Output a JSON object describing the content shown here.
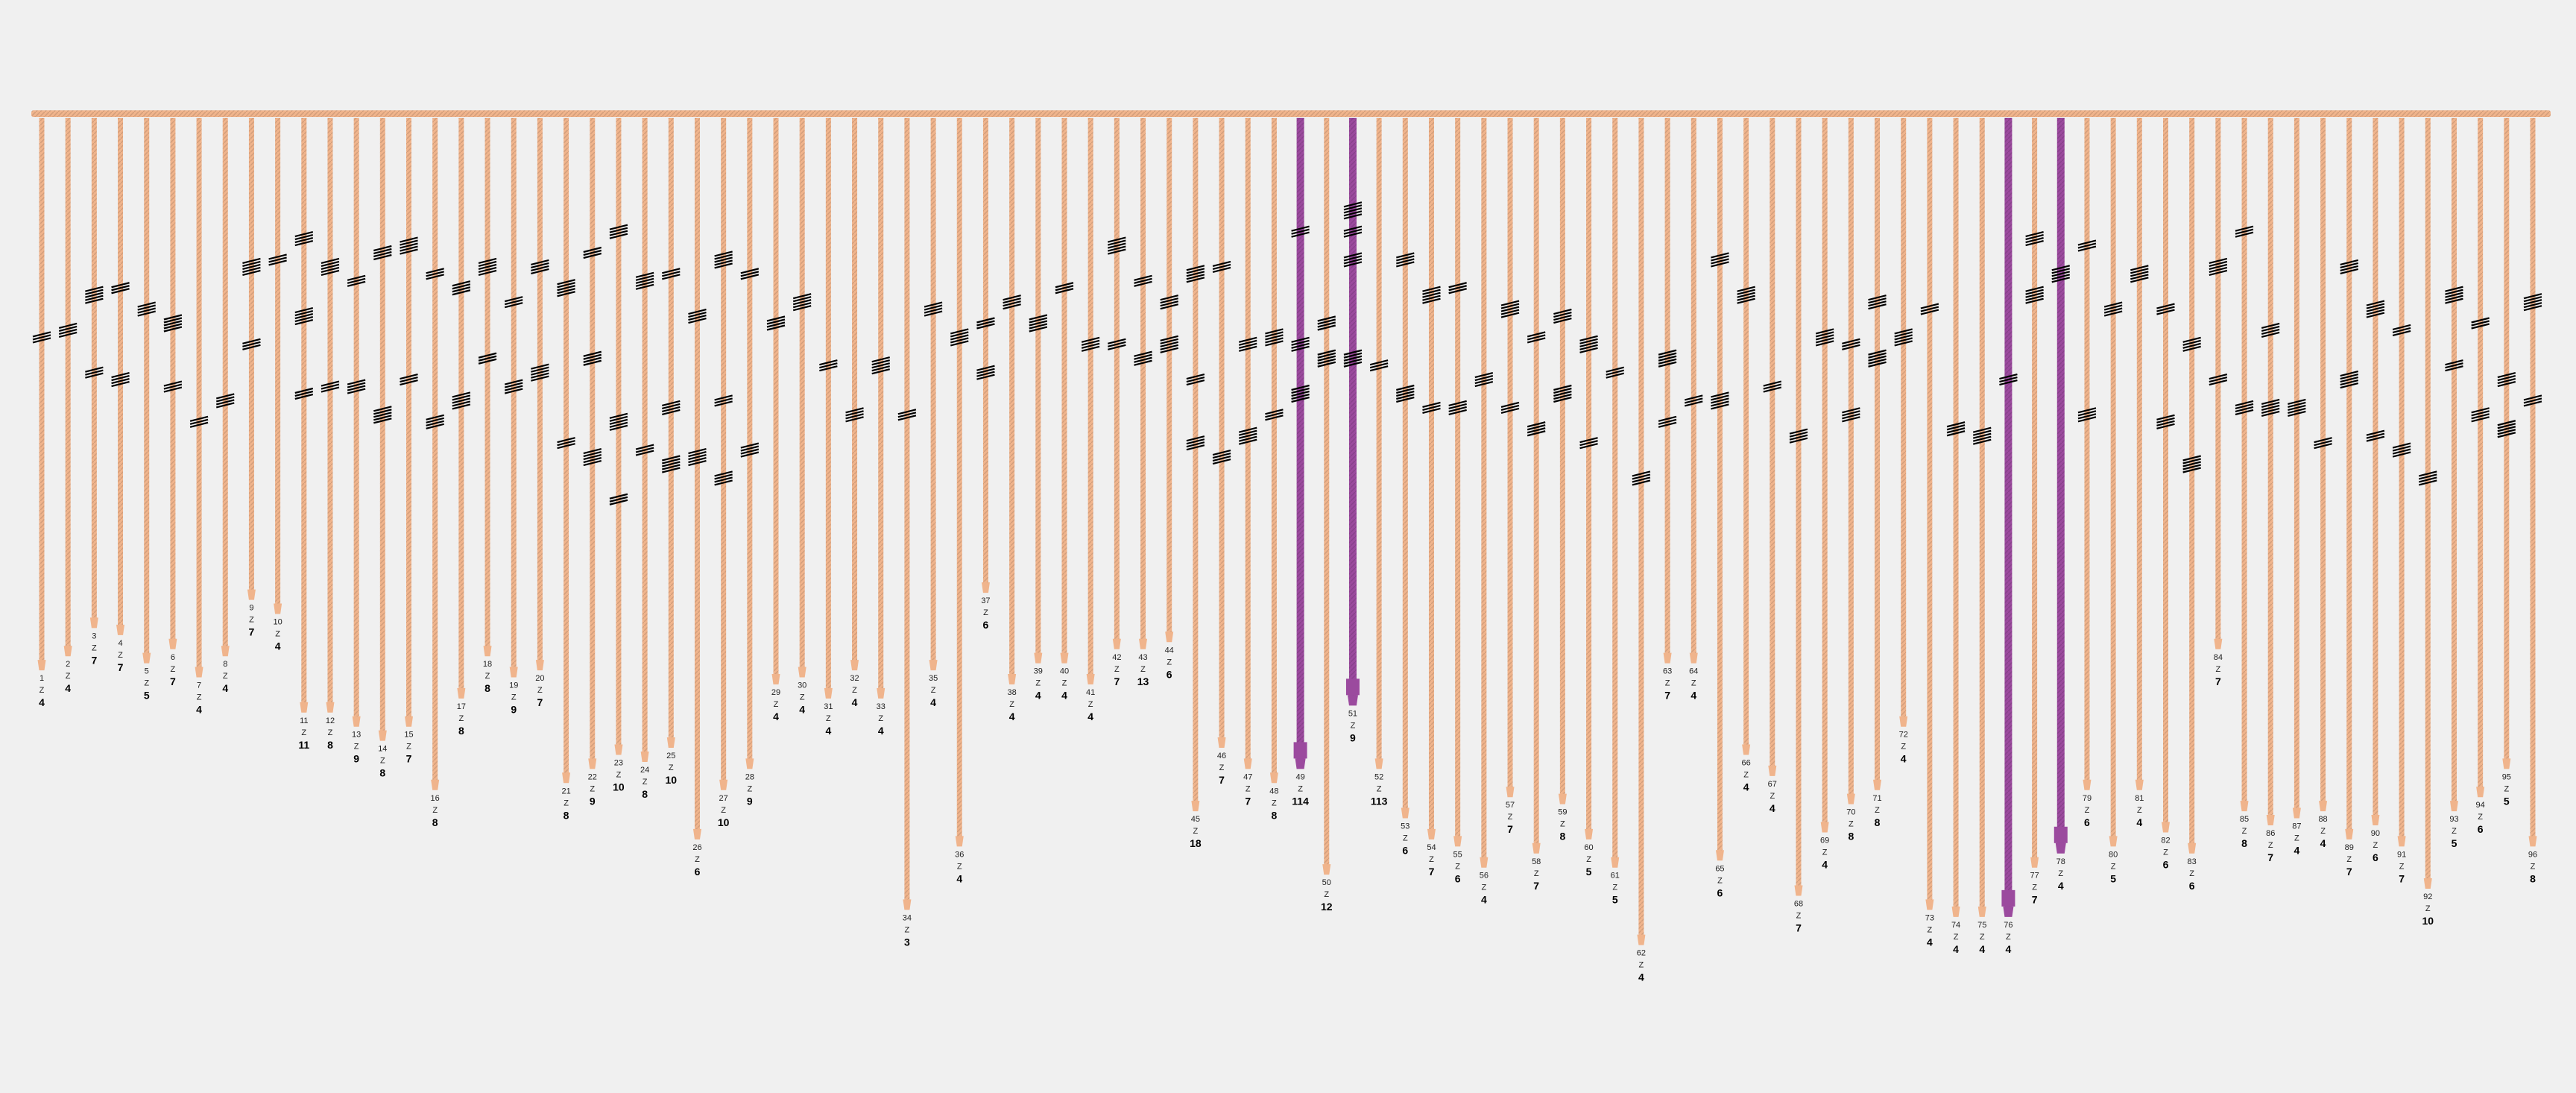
{
  "colors": {
    "background": "#f0f0f0",
    "main_cord": "#f0b48c",
    "cord": "#f0b48c",
    "cord_highlight": "#9b4a9e",
    "knot": "#000000",
    "text": "#222222"
  },
  "cords": [
    {
      "n": "1",
      "c": "Z",
      "v": "4",
      "h": false,
      "len": 0.78,
      "k": [
        0.32
      ]
    },
    {
      "n": "2",
      "c": "Z",
      "v": "4",
      "h": false,
      "len": 0.76,
      "k": [
        0.31
      ]
    },
    {
      "n": "3",
      "c": "Z",
      "v": "7",
      "h": false,
      "len": 0.72,
      "k": [
        0.26,
        0.37
      ]
    },
    {
      "n": "4",
      "c": "Z",
      "v": "7",
      "h": false,
      "len": 0.73,
      "k": [
        0.25,
        0.38
      ]
    },
    {
      "n": "5",
      "c": "Z",
      "v": "5",
      "h": false,
      "len": 0.77,
      "k": [
        0.28
      ]
    },
    {
      "n": "6",
      "c": "Z",
      "v": "7",
      "h": false,
      "len": 0.75,
      "k": [
        0.3,
        0.39
      ]
    },
    {
      "n": "7",
      "c": "Z",
      "v": "4",
      "h": false,
      "len": 0.79,
      "k": [
        0.44
      ]
    },
    {
      "n": "8",
      "c": "Z",
      "v": "4",
      "h": false,
      "len": 0.76,
      "k": [
        0.41
      ]
    },
    {
      "n": "9",
      "c": "Z",
      "v": "7",
      "h": false,
      "len": 0.68,
      "k": [
        0.22,
        0.33
      ]
    },
    {
      "n": "10",
      "c": "Z",
      "v": "4",
      "h": false,
      "len": 0.7,
      "k": [
        0.21
      ]
    },
    {
      "n": "11",
      "c": "Z",
      "v": "11",
      "h": false,
      "len": 0.84,
      "k": [
        0.18,
        0.29,
        0.4
      ]
    },
    {
      "n": "12",
      "c": "Z",
      "v": "8",
      "h": false,
      "len": 0.84,
      "k": [
        0.22,
        0.39
      ]
    },
    {
      "n": "13",
      "c": "Z",
      "v": "9",
      "h": false,
      "len": 0.86,
      "k": [
        0.24,
        0.39
      ]
    },
    {
      "n": "14",
      "c": "Z",
      "v": "8",
      "h": false,
      "len": 0.88,
      "k": [
        0.2,
        0.43
      ]
    },
    {
      "n": "15",
      "c": "Z",
      "v": "7",
      "h": false,
      "len": 0.86,
      "k": [
        0.19,
        0.38
      ]
    },
    {
      "n": "16",
      "c": "Z",
      "v": "8",
      "h": false,
      "len": 0.95,
      "k": [
        0.23,
        0.44
      ]
    },
    {
      "n": "17",
      "c": "Z",
      "v": "8",
      "h": false,
      "len": 0.82,
      "k": [
        0.25,
        0.41
      ]
    },
    {
      "n": "18",
      "c": "Z",
      "v": "8",
      "h": false,
      "len": 0.76,
      "k": [
        0.22,
        0.35
      ]
    },
    {
      "n": "19",
      "c": "Z",
      "v": "9",
      "h": false,
      "len": 0.79,
      "k": [
        0.27,
        0.39
      ]
    },
    {
      "n": "20",
      "c": "Z",
      "v": "7",
      "h": false,
      "len": 0.78,
      "k": [
        0.22,
        0.37
      ]
    },
    {
      "n": "21",
      "c": "Z",
      "v": "8",
      "h": false,
      "len": 0.94,
      "k": [
        0.25,
        0.47
      ]
    },
    {
      "n": "22",
      "c": "Z",
      "v": "9",
      "h": false,
      "len": 0.92,
      "k": [
        0.2,
        0.35,
        0.49
      ]
    },
    {
      "n": "23",
      "c": "Z",
      "v": "10",
      "h": false,
      "len": 0.9,
      "k": [
        0.17,
        0.44,
        0.55
      ]
    },
    {
      "n": "24",
      "c": "Z",
      "v": "8",
      "h": false,
      "len": 0.91,
      "k": [
        0.24,
        0.48
      ]
    },
    {
      "n": "25",
      "c": "Z",
      "v": "10",
      "h": false,
      "len": 0.89,
      "k": [
        0.23,
        0.42,
        0.5
      ]
    },
    {
      "n": "26",
      "c": "Z",
      "v": "6",
      "h": false,
      "len": 1.02,
      "k": [
        0.29,
        0.49
      ]
    },
    {
      "n": "27",
      "c": "Z",
      "v": "10",
      "h": false,
      "len": 0.95,
      "k": [
        0.21,
        0.41,
        0.52
      ]
    },
    {
      "n": "28",
      "c": "Z",
      "v": "9",
      "h": false,
      "len": 0.92,
      "k": [
        0.23,
        0.48
      ]
    },
    {
      "n": "29",
      "c": "Z",
      "v": "4",
      "h": false,
      "len": 0.8,
      "k": [
        0.3
      ]
    },
    {
      "n": "30",
      "c": "Z",
      "v": "4",
      "h": false,
      "len": 0.79,
      "k": [
        0.27
      ]
    },
    {
      "n": "31",
      "c": "Z",
      "v": "4",
      "h": false,
      "len": 0.82,
      "k": [
        0.36
      ]
    },
    {
      "n": "32",
      "c": "Z",
      "v": "4",
      "h": false,
      "len": 0.78,
      "k": [
        0.43
      ]
    },
    {
      "n": "33",
      "c": "Z",
      "v": "4",
      "h": false,
      "len": 0.82,
      "k": [
        0.36
      ]
    },
    {
      "n": "34",
      "c": "Z",
      "v": "3",
      "h": false,
      "len": 1.12,
      "k": [
        0.43
      ]
    },
    {
      "n": "35",
      "c": "Z",
      "v": "4",
      "h": false,
      "len": 0.78,
      "k": [
        0.28
      ]
    },
    {
      "n": "36",
      "c": "Z",
      "v": "4",
      "h": false,
      "len": 1.03,
      "k": [
        0.32
      ]
    },
    {
      "n": "37",
      "c": "Z",
      "v": "6",
      "h": false,
      "len": 0.67,
      "k": [
        0.3,
        0.37
      ]
    },
    {
      "n": "38",
      "c": "Z",
      "v": "4",
      "h": false,
      "len": 0.8,
      "k": [
        0.27
      ]
    },
    {
      "n": "39",
      "c": "Z",
      "v": "4",
      "h": false,
      "len": 0.77,
      "k": [
        0.3
      ]
    },
    {
      "n": "40",
      "c": "Z",
      "v": "4",
      "h": false,
      "len": 0.77,
      "k": [
        0.25
      ]
    },
    {
      "n": "41",
      "c": "Z",
      "v": "4",
      "h": false,
      "len": 0.8,
      "k": [
        0.33
      ]
    },
    {
      "n": "42",
      "c": "Z",
      "v": "7",
      "h": false,
      "len": 0.75,
      "k": [
        0.19,
        0.33
      ]
    },
    {
      "n": "43",
      "c": "Z",
      "v": "13",
      "h": false,
      "len": 0.75,
      "k": [
        0.24,
        0.35
      ]
    },
    {
      "n": "44",
      "c": "Z",
      "v": "6",
      "h": false,
      "len": 0.74,
      "k": [
        0.27,
        0.33
      ]
    },
    {
      "n": "45",
      "c": "Z",
      "v": "18",
      "h": false,
      "len": 0.98,
      "k": [
        0.23,
        0.38,
        0.47
      ]
    },
    {
      "n": "46",
      "c": "Z",
      "v": "7",
      "h": false,
      "len": 0.89,
      "k": [
        0.22,
        0.49
      ]
    },
    {
      "n": "47",
      "c": "Z",
      "v": "7",
      "h": false,
      "len": 0.92,
      "k": [
        0.33,
        0.46
      ]
    },
    {
      "n": "48",
      "c": "Z",
      "v": "8",
      "h": false,
      "len": 0.94,
      "k": [
        0.32,
        0.43
      ]
    },
    {
      "n": "49",
      "c": "Z",
      "v": "114",
      "h": true,
      "len": 0.92,
      "k": [
        0.17,
        0.33,
        0.4
      ]
    },
    {
      "n": "50",
      "c": "Z",
      "v": "12",
      "h": false,
      "len": 1.07,
      "k": [
        0.3,
        0.35
      ]
    },
    {
      "n": "51",
      "c": "Z",
      "v": "9",
      "h": true,
      "len": 0.83,
      "k": [
        0.14,
        0.17,
        0.21,
        0.35
      ]
    },
    {
      "n": "52",
      "c": "Z",
      "v": "113",
      "h": false,
      "len": 0.92,
      "k": [
        0.36
      ]
    },
    {
      "n": "53",
      "c": "Z",
      "v": "6",
      "h": false,
      "len": 0.99,
      "k": [
        0.21,
        0.4
      ]
    },
    {
      "n": "54",
      "c": "Z",
      "v": "7",
      "h": false,
      "len": 1.02,
      "k": [
        0.26,
        0.42
      ]
    },
    {
      "n": "55",
      "c": "Z",
      "v": "6",
      "h": false,
      "len": 1.03,
      "k": [
        0.25,
        0.42
      ]
    },
    {
      "n": "56",
      "c": "Z",
      "v": "4",
      "h": false,
      "len": 1.06,
      "k": [
        0.38
      ]
    },
    {
      "n": "57",
      "c": "Z",
      "v": "7",
      "h": false,
      "len": 0.96,
      "k": [
        0.28,
        0.42
      ]
    },
    {
      "n": "58",
      "c": "Z",
      "v": "7",
      "h": false,
      "len": 1.04,
      "k": [
        0.32,
        0.45
      ]
    },
    {
      "n": "59",
      "c": "Z",
      "v": "8",
      "h": false,
      "len": 0.97,
      "k": [
        0.29,
        0.4
      ]
    },
    {
      "n": "60",
      "c": "Z",
      "v": "5",
      "h": false,
      "len": 1.02,
      "k": [
        0.33,
        0.47
      ]
    },
    {
      "n": "61",
      "c": "Z",
      "v": "5",
      "h": false,
      "len": 1.06,
      "k": [
        0.37
      ]
    },
    {
      "n": "62",
      "c": "Z",
      "v": "4",
      "h": false,
      "len": 1.17,
      "k": [
        0.52
      ]
    },
    {
      "n": "63",
      "c": "Z",
      "v": "7",
      "h": false,
      "len": 0.77,
      "k": [
        0.35,
        0.44
      ]
    },
    {
      "n": "64",
      "c": "Z",
      "v": "4",
      "h": false,
      "len": 0.77,
      "k": [
        0.41
      ]
    },
    {
      "n": "65",
      "c": "Z",
      "v": "6",
      "h": false,
      "len": 1.05,
      "k": [
        0.21,
        0.41
      ]
    },
    {
      "n": "66",
      "c": "Z",
      "v": "4",
      "h": false,
      "len": 0.9,
      "k": [
        0.26
      ]
    },
    {
      "n": "67",
      "c": "Z",
      "v": "4",
      "h": false,
      "len": 0.93,
      "k": [
        0.39
      ]
    },
    {
      "n": "68",
      "c": "Z",
      "v": "7",
      "h": false,
      "len": 1.1,
      "k": [
        0.46
      ]
    },
    {
      "n": "69",
      "c": "Z",
      "v": "4",
      "h": false,
      "len": 1.01,
      "k": [
        0.32
      ]
    },
    {
      "n": "70",
      "c": "Z",
      "v": "8",
      "h": false,
      "len": 0.97,
      "k": [
        0.33,
        0.43
      ]
    },
    {
      "n": "71",
      "c": "Z",
      "v": "8",
      "h": false,
      "len": 0.95,
      "k": [
        0.27,
        0.35
      ]
    },
    {
      "n": "72",
      "c": "Z",
      "v": "4",
      "h": false,
      "len": 0.86,
      "k": [
        0.32
      ]
    },
    {
      "n": "73",
      "c": "Z",
      "v": "4",
      "h": false,
      "len": 1.12,
      "k": [
        0.28
      ]
    },
    {
      "n": "74",
      "c": "Z",
      "v": "4",
      "h": false,
      "len": 1.13,
      "k": [
        0.45
      ]
    },
    {
      "n": "75",
      "c": "Z",
      "v": "4",
      "h": false,
      "len": 1.13,
      "k": [
        0.46
      ]
    },
    {
      "n": "76",
      "c": "Z",
      "v": "4",
      "h": true,
      "len": 1.13,
      "k": [
        0.38
      ]
    },
    {
      "n": "77",
      "c": "Z",
      "v": "7",
      "h": false,
      "len": 1.06,
      "k": [
        0.18,
        0.26
      ]
    },
    {
      "n": "78",
      "c": "Z",
      "v": "4",
      "h": true,
      "len": 1.04,
      "k": [
        0.23
      ]
    },
    {
      "n": "79",
      "c": "Z",
      "v": "6",
      "h": false,
      "len": 0.95,
      "k": [
        0.19,
        0.43
      ]
    },
    {
      "n": "80",
      "c": "Z",
      "v": "5",
      "h": false,
      "len": 1.03,
      "k": [
        0.28
      ]
    },
    {
      "n": "81",
      "c": "Z",
      "v": "4",
      "h": false,
      "len": 0.95,
      "k": [
        0.23
      ]
    },
    {
      "n": "82",
      "c": "Z",
      "v": "6",
      "h": false,
      "len": 1.01,
      "k": [
        0.28,
        0.44
      ]
    },
    {
      "n": "83",
      "c": "Z",
      "v": "6",
      "h": false,
      "len": 1.04,
      "k": [
        0.33,
        0.5
      ]
    },
    {
      "n": "84",
      "c": "Z",
      "v": "7",
      "h": false,
      "len": 0.75,
      "k": [
        0.22,
        0.38
      ]
    },
    {
      "n": "85",
      "c": "Z",
      "v": "8",
      "h": false,
      "len": 0.98,
      "k": [
        0.17,
        0.42
      ]
    },
    {
      "n": "86",
      "c": "Z",
      "v": "7",
      "h": false,
      "len": 1.0,
      "k": [
        0.31,
        0.42
      ]
    },
    {
      "n": "87",
      "c": "Z",
      "v": "4",
      "h": false,
      "len": 0.99,
      "k": [
        0.42
      ]
    },
    {
      "n": "88",
      "c": "Z",
      "v": "4",
      "h": false,
      "len": 0.98,
      "k": [
        0.47
      ]
    },
    {
      "n": "89",
      "c": "Z",
      "v": "7",
      "h": false,
      "len": 1.02,
      "k": [
        0.22,
        0.38
      ]
    },
    {
      "n": "90",
      "c": "Z",
      "v": "6",
      "h": false,
      "len": 1.0,
      "k": [
        0.28,
        0.46
      ]
    },
    {
      "n": "91",
      "c": "Z",
      "v": "7",
      "h": false,
      "len": 1.03,
      "k": [
        0.31,
        0.48
      ]
    },
    {
      "n": "92",
      "c": "Z",
      "v": "10",
      "h": false,
      "len": 1.09,
      "k": [
        0.52
      ]
    },
    {
      "n": "93",
      "c": "Z",
      "v": "5",
      "h": false,
      "len": 0.98,
      "k": [
        0.26,
        0.36
      ]
    },
    {
      "n": "94",
      "c": "Z",
      "v": "6",
      "h": false,
      "len": 0.96,
      "k": [
        0.3,
        0.43
      ]
    },
    {
      "n": "95",
      "c": "Z",
      "v": "5",
      "h": false,
      "len": 0.92,
      "k": [
        0.38,
        0.45
      ]
    },
    {
      "n": "96",
      "c": "Z",
      "v": "8",
      "h": false,
      "len": 1.03,
      "k": [
        0.27,
        0.41
      ]
    }
  ]
}
